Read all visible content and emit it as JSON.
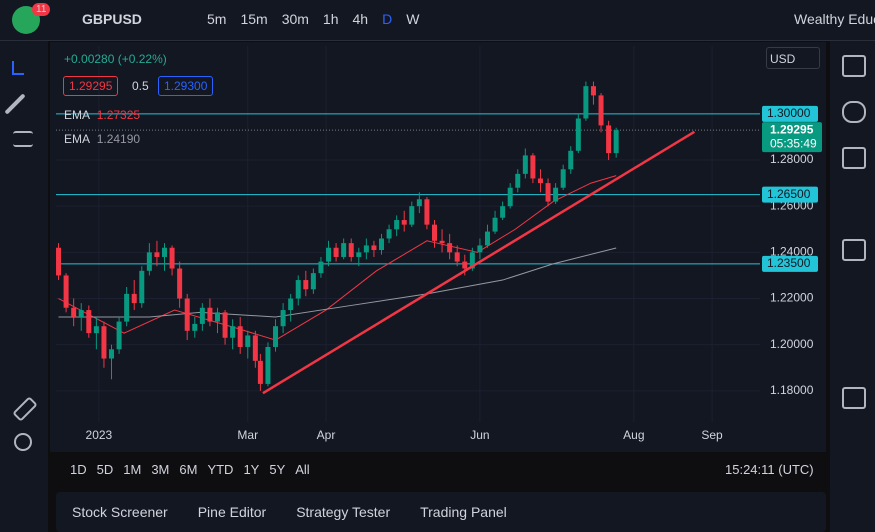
{
  "toolbar": {
    "badge": "11",
    "symbol": "GBPUSD",
    "timeframes": [
      "5m",
      "15m",
      "30m",
      "1h",
      "4h",
      "D",
      "W"
    ],
    "account": "Wealthy Educ"
  },
  "legend": {
    "change": "+0.00280 (+0.22%)",
    "bid": "1.29295",
    "spread": "0.5",
    "ask": "1.29300",
    "ema": [
      {
        "label": "EMA",
        "value": "1.27325"
      },
      {
        "label": "EMA",
        "value": "1.24190"
      }
    ]
  },
  "chart_data": {
    "type": "candlestick",
    "currency": "USD",
    "x": [
      -16,
      -13,
      -10,
      -7,
      -4,
      -1,
      2,
      5,
      8,
      11,
      14,
      17,
      20,
      23,
      26,
      29,
      32,
      35,
      38,
      41,
      44,
      47,
      50,
      53,
      56,
      59,
      62,
      64,
      67,
      70,
      73,
      76,
      79,
      82,
      85,
      88,
      91,
      94,
      97,
      100,
      103,
      106,
      109,
      112,
      115,
      118,
      121,
      124,
      127,
      130,
      133,
      136,
      139,
      142,
      145,
      148,
      151,
      154,
      157,
      160,
      163,
      166,
      169,
      172,
      175,
      178,
      181,
      184,
      187,
      190,
      193,
      196,
      199,
      202,
      205
    ],
    "open": [
      1.242,
      1.23,
      1.216,
      1.212,
      1.215,
      1.205,
      1.208,
      1.194,
      1.198,
      1.21,
      1.222,
      1.218,
      1.232,
      1.24,
      1.238,
      1.242,
      1.233,
      1.22,
      1.206,
      1.209,
      1.216,
      1.21,
      1.214,
      1.203,
      1.208,
      1.199,
      1.204,
      1.193,
      1.183,
      1.199,
      1.208,
      1.215,
      1.22,
      1.228,
      1.224,
      1.231,
      1.236,
      1.242,
      1.238,
      1.244,
      1.238,
      1.24,
      1.243,
      1.241,
      1.246,
      1.25,
      1.254,
      1.252,
      1.26,
      1.263,
      1.252,
      1.245,
      1.244,
      1.24,
      1.236,
      1.233,
      1.24,
      1.243,
      1.249,
      1.255,
      1.26,
      1.268,
      1.274,
      1.282,
      1.272,
      1.27,
      1.262,
      1.268,
      1.276,
      1.284,
      1.298,
      1.312,
      1.308,
      1.295,
      1.283
    ],
    "high": [
      1.244,
      1.231,
      1.22,
      1.218,
      1.217,
      1.212,
      1.21,
      1.2,
      1.212,
      1.225,
      1.228,
      1.234,
      1.244,
      1.245,
      1.244,
      1.243,
      1.236,
      1.222,
      1.212,
      1.218,
      1.22,
      1.216,
      1.215,
      1.211,
      1.212,
      1.206,
      1.206,
      1.196,
      1.201,
      1.211,
      1.218,
      1.222,
      1.23,
      1.232,
      1.233,
      1.238,
      1.245,
      1.244,
      1.246,
      1.246,
      1.242,
      1.246,
      1.245,
      1.248,
      1.252,
      1.256,
      1.258,
      1.262,
      1.266,
      1.264,
      1.254,
      1.25,
      1.248,
      1.243,
      1.239,
      1.242,
      1.246,
      1.252,
      1.258,
      1.262,
      1.27,
      1.276,
      1.285,
      1.283,
      1.276,
      1.272,
      1.27,
      1.278,
      1.286,
      1.3,
      1.314,
      1.314,
      1.309,
      1.297,
      1.294
    ],
    "low": [
      1.228,
      1.214,
      1.208,
      1.206,
      1.203,
      1.198,
      1.19,
      1.185,
      1.196,
      1.208,
      1.215,
      1.216,
      1.23,
      1.234,
      1.232,
      1.23,
      1.216,
      1.202,
      1.203,
      1.206,
      1.208,
      1.205,
      1.2,
      1.198,
      1.196,
      1.194,
      1.19,
      1.18,
      1.182,
      1.197,
      1.205,
      1.21,
      1.217,
      1.221,
      1.222,
      1.229,
      1.234,
      1.236,
      1.237,
      1.236,
      1.234,
      1.237,
      1.238,
      1.239,
      1.244,
      1.247,
      1.249,
      1.251,
      1.257,
      1.25,
      1.242,
      1.24,
      1.237,
      1.234,
      1.23,
      1.232,
      1.237,
      1.242,
      1.248,
      1.254,
      1.259,
      1.266,
      1.272,
      1.27,
      1.266,
      1.26,
      1.261,
      1.267,
      1.274,
      1.283,
      1.297,
      1.304,
      1.292,
      1.28,
      1.281
    ],
    "close": [
      1.23,
      1.216,
      1.212,
      1.215,
      1.205,
      1.208,
      1.194,
      1.198,
      1.21,
      1.222,
      1.218,
      1.232,
      1.24,
      1.238,
      1.242,
      1.233,
      1.22,
      1.206,
      1.209,
      1.216,
      1.21,
      1.214,
      1.203,
      1.208,
      1.199,
      1.204,
      1.193,
      1.183,
      1.199,
      1.208,
      1.215,
      1.22,
      1.228,
      1.224,
      1.231,
      1.236,
      1.242,
      1.238,
      1.244,
      1.238,
      1.24,
      1.243,
      1.241,
      1.246,
      1.25,
      1.254,
      1.252,
      1.26,
      1.263,
      1.252,
      1.245,
      1.244,
      1.24,
      1.236,
      1.233,
      1.24,
      1.243,
      1.249,
      1.255,
      1.26,
      1.268,
      1.274,
      1.282,
      1.272,
      1.27,
      1.262,
      1.268,
      1.276,
      1.284,
      1.298,
      1.312,
      1.308,
      1.295,
      1.283,
      1.29295
    ],
    "up_color": "#089981",
    "down_color": "#f23645",
    "series": [
      {
        "name": "EMA",
        "color": "#f23645",
        "x": [
          -16,
          10,
          30,
          55,
          70,
          90,
          110,
          130,
          150,
          165,
          180,
          195,
          205
        ],
        "values": [
          1.22,
          1.205,
          1.215,
          1.207,
          1.202,
          1.215,
          1.232,
          1.245,
          1.24,
          1.25,
          1.262,
          1.27,
          1.27325
        ]
      },
      {
        "name": "EMA",
        "color": "#9598a1",
        "x": [
          -16,
          20,
          40,
          70,
          100,
          130,
          160,
          180,
          205
        ],
        "values": [
          1.212,
          1.212,
          1.214,
          1.212,
          1.217,
          1.222,
          1.228,
          1.235,
          1.2419
        ]
      }
    ],
    "trendline": {
      "color": "#f23645",
      "x": [
        65,
        236
      ],
      "values": [
        1.179,
        1.2922
      ]
    },
    "levels": [
      {
        "value": 1.3,
        "label": "1.30000"
      },
      {
        "value": 1.265,
        "label": "1.26500"
      },
      {
        "value": 1.235,
        "label": "1.23500"
      }
    ],
    "level_color": "#22c4d8",
    "last_price": {
      "value": 1.29295,
      "label": "1.29295",
      "countdown": "05:35:49"
    },
    "xlim": [
      -17,
      262
    ],
    "ylim": [
      1.1665,
      1.3294
    ],
    "xticks": [
      {
        "value": 0,
        "label": "2023"
      },
      {
        "value": 59,
        "label": "Mar"
      },
      {
        "value": 90,
        "label": "Apr"
      },
      {
        "value": 151,
        "label": "Jun"
      },
      {
        "value": 212,
        "label": "Aug"
      },
      {
        "value": 243,
        "label": "Sep"
      }
    ],
    "yticks": [
      {
        "value": 1.28,
        "label": "1.28000"
      },
      {
        "value": 1.26,
        "label": "1.26000"
      },
      {
        "value": 1.24,
        "label": "1.24000"
      },
      {
        "value": 1.22,
        "label": "1.22000"
      },
      {
        "value": 1.2,
        "label": "1.20000"
      },
      {
        "value": 1.18,
        "label": "1.18000"
      }
    ]
  },
  "ranges": [
    "1D",
    "5D",
    "1M",
    "3M",
    "6M",
    "YTD",
    "1Y",
    "5Y",
    "All"
  ],
  "clock": "15:24:11 (UTC)",
  "tabs": [
    "Stock Screener",
    "Pine Editor",
    "Strategy Tester",
    "Trading Panel"
  ]
}
